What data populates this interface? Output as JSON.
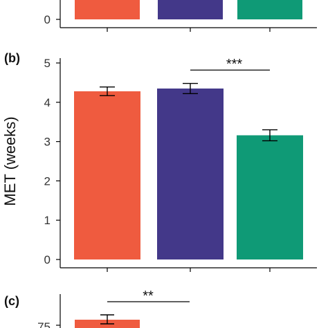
{
  "colors": {
    "series": [
      "#ef5b3f",
      "#433889",
      "#0f9a76"
    ],
    "axis": "#000000",
    "text": "#333333"
  },
  "chart_data": [
    {
      "panel": "a",
      "type": "bar",
      "partially_visible": true,
      "categories": [
        "",
        "",
        ""
      ],
      "yticks": [
        0
      ],
      "ylim": [
        0,
        5
      ],
      "colors": [
        "#ef5b3f",
        "#433889",
        "#0f9a76"
      ]
    },
    {
      "panel": "b",
      "panel_label": "(b)",
      "type": "bar",
      "ylabel": "MET (weeks)",
      "xlabel": "",
      "categories": [
        "",
        "",
        ""
      ],
      "values": [
        4.28,
        4.35,
        3.16
      ],
      "errors": [
        0.11,
        0.13,
        0.14
      ],
      "ylim": [
        0,
        5.3
      ],
      "yticks": [
        0,
        1,
        2,
        3,
        4,
        5
      ],
      "grid": false,
      "colors": [
        "#ef5b3f",
        "#433889",
        "#0f9a76"
      ],
      "annotations": [
        {
          "label": "***",
          "from_bar": 2,
          "to_bar": 3,
          "y": 4.82
        }
      ]
    },
    {
      "panel": "c",
      "panel_label": "(c)",
      "type": "bar",
      "partially_visible": true,
      "categories": [
        "",
        "",
        ""
      ],
      "visible_values": [
        75
      ],
      "yticks": [
        75
      ],
      "colors": [
        "#ef5b3f"
      ],
      "annotations": [
        {
          "label": "**",
          "from_bar": 1,
          "to_bar": 2
        }
      ]
    }
  ]
}
